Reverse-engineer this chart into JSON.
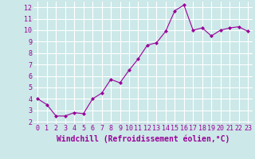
{
  "x": [
    0,
    1,
    2,
    3,
    4,
    5,
    6,
    7,
    8,
    9,
    10,
    11,
    12,
    13,
    14,
    15,
    16,
    17,
    18,
    19,
    20,
    21,
    22,
    23
  ],
  "y": [
    4.0,
    3.5,
    2.5,
    2.5,
    2.8,
    2.7,
    4.0,
    4.5,
    5.7,
    5.4,
    6.5,
    7.5,
    8.7,
    8.9,
    9.9,
    11.7,
    12.2,
    10.0,
    10.2,
    9.5,
    10.0,
    10.2,
    10.3,
    9.9
  ],
  "xlim": [
    -0.5,
    23.5
  ],
  "ylim": [
    1.8,
    12.5
  ],
  "yticks": [
    2,
    3,
    4,
    5,
    6,
    7,
    8,
    9,
    10,
    11,
    12
  ],
  "xticks": [
    0,
    1,
    2,
    3,
    4,
    5,
    6,
    7,
    8,
    9,
    10,
    11,
    12,
    13,
    14,
    15,
    16,
    17,
    18,
    19,
    20,
    21,
    22,
    23
  ],
  "xlabel": "Windchill (Refroidissement éolien,°C)",
  "line_color": "#990099",
  "marker": "D",
  "marker_size": 2,
  "bg_color": "#cce8e8",
  "grid_color": "#ffffff",
  "tick_label_fontsize": 6,
  "xlabel_fontsize": 7
}
